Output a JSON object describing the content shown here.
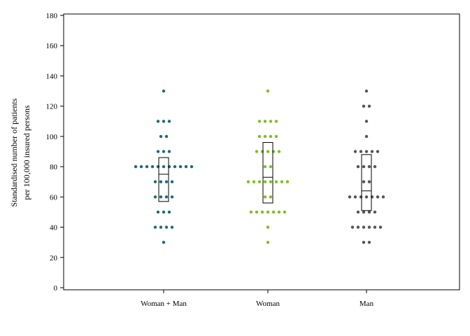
{
  "chart_data": {
    "type": "scatter",
    "subtype": "dot-plot-with-boxes",
    "title": "",
    "xlabel": "",
    "ylabel_lines": [
      "Standardised number of patients",
      "per 100,000 insured persons"
    ],
    "ylim": [
      0,
      180
    ],
    "yticks": [
      0,
      20,
      40,
      60,
      80,
      100,
      120,
      140,
      160,
      180
    ],
    "grid": false,
    "legend": "none",
    "categories": [
      "Woman + Man",
      "Woman",
      "Man"
    ],
    "series": [
      {
        "category": "Woman + Man",
        "color": "#1f6b73",
        "points": [
          130,
          110,
          110,
          110,
          100,
          100,
          90,
          90,
          90,
          80,
          80,
          80,
          80,
          80,
          80,
          80,
          80,
          80,
          80,
          80,
          70,
          70,
          70,
          70,
          60,
          60,
          60,
          60,
          50,
          50,
          50,
          40,
          40,
          40,
          40,
          30
        ],
        "box": {
          "q1": 57,
          "median": 75,
          "q3": 86
        }
      },
      {
        "category": "Woman",
        "color": "#7fbf1f",
        "points": [
          130,
          110,
          110,
          110,
          110,
          100,
          100,
          100,
          100,
          90,
          90,
          90,
          90,
          90,
          80,
          80,
          70,
          70,
          70,
          70,
          70,
          70,
          70,
          70,
          60,
          60,
          50,
          50,
          50,
          50,
          50,
          50,
          50,
          40,
          30
        ],
        "box": {
          "q1": 56,
          "median": 73,
          "q3": 96
        }
      },
      {
        "category": "Man",
        "color": "#555555",
        "points": [
          130,
          120,
          120,
          110,
          100,
          90,
          90,
          90,
          90,
          90,
          80,
          80,
          80,
          80,
          70,
          70,
          60,
          60,
          60,
          60,
          60,
          60,
          60,
          50,
          50,
          50,
          50,
          40,
          40,
          40,
          40,
          40,
          40,
          30,
          30
        ],
        "box": {
          "q1": 51,
          "median": 64,
          "q3": 88
        }
      }
    ]
  }
}
